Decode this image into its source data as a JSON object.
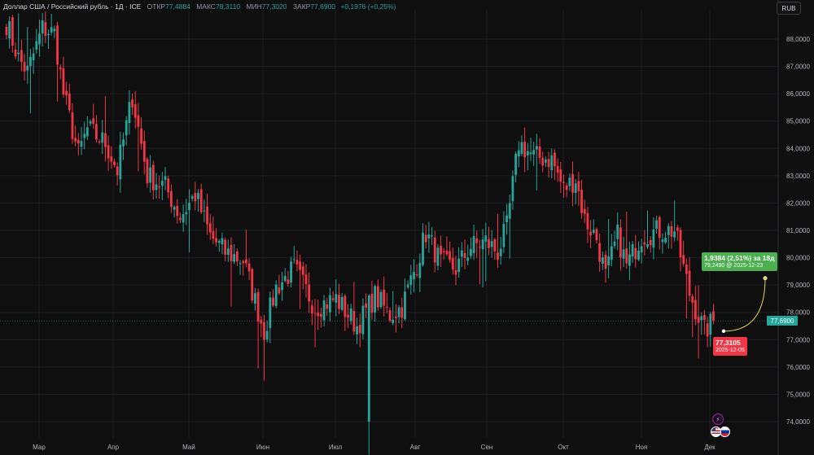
{
  "header": {
    "symbol": "Доллар США / Российский рубль · 1Д · ICE",
    "open_label": "ОТКР",
    "open_value": "77,4884",
    "high_label": "МАКС",
    "high_value": "78,3110",
    "low_label": "МИН",
    "low_value": "77,3020",
    "close_label": "ЗАКР",
    "close_value": "77,6900",
    "change": "+0,1976 (+0,25%)"
  },
  "currency_button": "RUB",
  "current_price_tag": "77,6900",
  "projection": {
    "change_text": "1,9384 (2,51%) за 18д",
    "target_text": "79,2490 @ 2025-12-23",
    "start_value_text": "77,3105",
    "start_date_text": "2025-12-05"
  },
  "icons": [
    "lightning-icon",
    "us-flag-icon",
    "ru-flag-icon"
  ],
  "colors": {
    "up": "#26a69a",
    "down": "#f23645",
    "projection_line": "#e5d44b",
    "callout_green": "#4caf50"
  },
  "chart_data": {
    "type": "candlestick",
    "y_ticks": [
      "88,0000",
      "87,0000",
      "86,0000",
      "85,0000",
      "84,0000",
      "83,0000",
      "82,0000",
      "81,0000",
      "80,0000",
      "79,0000",
      "78,0000",
      "77,0000",
      "76,0000",
      "75,0000",
      "74,0000"
    ],
    "y_tick_values": [
      88,
      87,
      86,
      85,
      84,
      83,
      82,
      81,
      80,
      79,
      78,
      77,
      76,
      75,
      74
    ],
    "x_labels": [
      "Мар",
      "Апр",
      "Май",
      "Июн",
      "Июл",
      "Авг",
      "Сен",
      "Окт",
      "Ноя",
      "Дек"
    ],
    "ylim": [
      73.4,
      88.9
    ],
    "current_price": 77.69,
    "projection_start": 77.3105,
    "projection_end": 79.249,
    "anchors": [
      [
        0,
        88.6
      ],
      [
        4,
        87.3
      ],
      [
        7,
        86.8
      ],
      [
        12,
        88.4
      ],
      [
        16,
        88.2
      ],
      [
        19,
        86.0
      ],
      [
        24,
        83.8
      ],
      [
        27,
        84.7
      ],
      [
        33,
        84.2
      ],
      [
        37,
        83.2
      ],
      [
        42,
        85.9
      ],
      [
        47,
        83.0
      ],
      [
        53,
        82.6
      ],
      [
        58,
        81.5
      ],
      [
        63,
        82.3
      ],
      [
        68,
        80.8
      ],
      [
        73,
        80.2
      ],
      [
        79,
        79.9
      ],
      [
        86,
        77.3
      ],
      [
        90,
        78.9
      ],
      [
        96,
        79.6
      ],
      [
        103,
        78.2
      ],
      [
        110,
        78.5
      ],
      [
        117,
        77.5
      ],
      [
        123,
        78.6
      ],
      [
        128,
        77.9
      ],
      [
        132,
        78.2
      ],
      [
        137,
        79.8
      ],
      [
        140,
        80.9
      ],
      [
        145,
        79.8
      ],
      [
        150,
        79.6
      ],
      [
        155,
        80.4
      ],
      [
        160,
        80.6
      ],
      [
        164,
        80.2
      ],
      [
        167,
        81.1
      ],
      [
        171,
        84.2
      ],
      [
        176,
        83.7
      ],
      [
        182,
        83.6
      ],
      [
        186,
        82.5
      ],
      [
        190,
        82.9
      ],
      [
        193,
        81.4
      ],
      [
        197,
        80.7
      ],
      [
        200,
        79.3
      ],
      [
        204,
        80.8
      ],
      [
        207,
        79.7
      ],
      [
        212,
        80.8
      ],
      [
        218,
        81.0
      ],
      [
        223,
        81.0
      ],
      [
        228,
        78.7
      ],
      [
        233,
        77.3
      ],
      [
        236,
        77.69
      ]
    ],
    "volatile_up_day": 121,
    "volatile_low": 74.0
  }
}
